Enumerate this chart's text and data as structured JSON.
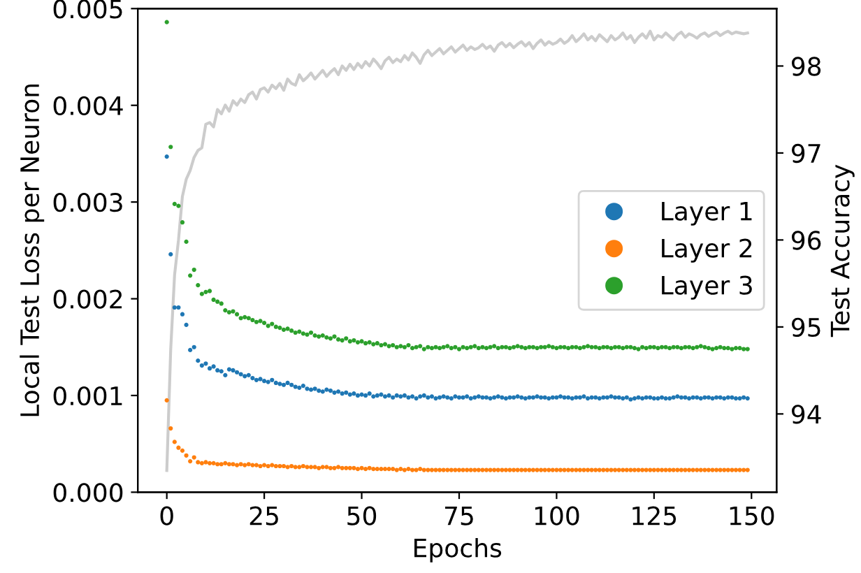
{
  "chart_data": {
    "type": "scatter",
    "xlabel": "Epochs",
    "ylabel": "Local Test Loss per Neuron",
    "y2label": "Test Accuracy",
    "xlim": [
      -7.45,
      156.45
    ],
    "xticks": [
      0,
      25,
      50,
      75,
      100,
      125,
      150
    ],
    "ylim": [
      0,
      0.005
    ],
    "yticks": [
      {
        "value": 0,
        "label": "0.000"
      },
      {
        "value": 0.001,
        "label": "0.001"
      },
      {
        "value": 0.002,
        "label": "0.002"
      },
      {
        "value": 0.003,
        "label": "0.003"
      },
      {
        "value": 0.004,
        "label": "0.004"
      },
      {
        "value": 0.005,
        "label": "0.005"
      }
    ],
    "y2lim": [
      93.1,
      98.66
    ],
    "y2ticks": [
      94,
      95,
      96,
      97,
      98
    ],
    "legend": "right",
    "grid": false,
    "marker": "circle",
    "x": [
      0,
      1,
      2,
      3,
      4,
      5,
      6,
      7,
      8,
      9,
      10,
      11,
      12,
      13,
      14,
      15,
      16,
      17,
      18,
      19,
      20,
      21,
      22,
      23,
      24,
      25,
      26,
      27,
      28,
      29,
      30,
      31,
      32,
      33,
      34,
      35,
      36,
      37,
      38,
      39,
      40,
      41,
      42,
      43,
      44,
      45,
      46,
      47,
      48,
      49,
      50,
      51,
      52,
      53,
      54,
      55,
      56,
      57,
      58,
      59,
      60,
      61,
      62,
      63,
      64,
      65,
      66,
      67,
      68,
      69,
      70,
      71,
      72,
      73,
      74,
      75,
      76,
      77,
      78,
      79,
      80,
      81,
      82,
      83,
      84,
      85,
      86,
      87,
      88,
      89,
      90,
      91,
      92,
      93,
      94,
      95,
      96,
      97,
      98,
      99,
      100,
      101,
      102,
      103,
      104,
      105,
      106,
      107,
      108,
      109,
      110,
      111,
      112,
      113,
      114,
      115,
      116,
      117,
      118,
      119,
      120,
      121,
      122,
      123,
      124,
      125,
      126,
      127,
      128,
      129,
      130,
      131,
      132,
      133,
      134,
      135,
      136,
      137,
      138,
      139,
      140,
      141,
      142,
      143,
      144,
      145,
      146,
      147,
      148,
      149
    ],
    "series": [
      {
        "type": "line",
        "axis": "y2",
        "marker": "none",
        "color": "#cccccc",
        "values": [
          93.35,
          94.74,
          95.6,
          96.0,
          96.5,
          96.7,
          96.8,
          96.95,
          97.03,
          97.06,
          97.33,
          97.35,
          97.3,
          97.5,
          97.45,
          97.55,
          97.48,
          97.6,
          97.55,
          97.62,
          97.58,
          97.67,
          97.7,
          97.62,
          97.73,
          97.75,
          97.7,
          97.78,
          97.74,
          97.8,
          97.72,
          97.85,
          97.8,
          97.78,
          97.9,
          97.83,
          97.87,
          97.92,
          97.85,
          97.9,
          97.95,
          97.88,
          97.93,
          97.97,
          97.9,
          98.0,
          97.95,
          98.02,
          97.96,
          98.03,
          97.98,
          98.05,
          98.0,
          98.08,
          98.03,
          97.97,
          98.06,
          98.1,
          98.04,
          98.08,
          98.05,
          98.12,
          98.07,
          98.15,
          98.1,
          98.03,
          98.13,
          98.18,
          98.12,
          98.16,
          98.2,
          98.14,
          98.18,
          98.22,
          98.16,
          98.2,
          98.24,
          98.18,
          98.22,
          98.19,
          98.21,
          98.25,
          98.2,
          98.23,
          98.17,
          98.24,
          98.27,
          98.22,
          98.26,
          98.21,
          98.25,
          98.28,
          98.23,
          98.27,
          98.2,
          98.26,
          98.3,
          98.24,
          98.28,
          98.25,
          98.27,
          98.31,
          98.26,
          98.29,
          98.35,
          98.28,
          98.32,
          98.37,
          98.3,
          98.34,
          98.29,
          98.36,
          98.32,
          98.28,
          98.35,
          98.3,
          98.33,
          98.38,
          98.31,
          98.35,
          98.27,
          98.33,
          98.37,
          98.32,
          98.4,
          98.3,
          98.35,
          98.33,
          98.38,
          98.34,
          98.3,
          98.36,
          98.39,
          98.33,
          98.37,
          98.35,
          98.32,
          98.36,
          98.38,
          98.34,
          98.37,
          98.39,
          98.35,
          98.38,
          98.4,
          98.37,
          98.39,
          98.38,
          98.37,
          98.38
        ]
      },
      {
        "name": "Layer 1",
        "color": "#1f77b4",
        "values": [
          0.00347,
          0.00246,
          0.00191,
          0.00191,
          0.00184,
          0.00173,
          0.00147,
          0.0015,
          0.00136,
          0.00131,
          0.00133,
          0.00128,
          0.0013,
          0.00126,
          0.00125,
          0.00121,
          0.00127,
          0.00126,
          0.00124,
          0.00122,
          0.0012,
          0.00121,
          0.00118,
          0.00116,
          0.00117,
          0.00115,
          0.00114,
          0.00116,
          0.00113,
          0.00112,
          0.00111,
          0.00113,
          0.00111,
          0.00109,
          0.00108,
          0.0011,
          0.00107,
          0.00106,
          0.00107,
          0.00105,
          0.00104,
          0.00106,
          0.00105,
          0.00103,
          0.00104,
          0.00102,
          0.00103,
          0.00101,
          0.00102,
          0.001,
          0.00101,
          0.001,
          0.00102,
          0.00099,
          0.001,
          0.00101,
          0.00099,
          0.001,
          0.00098,
          0.001,
          0.00099,
          0.001,
          0.00098,
          0.00099,
          0.00097,
          0.00099,
          0.001,
          0.00098,
          0.00099,
          0.00097,
          0.00098,
          0.00099,
          0.00098,
          0.00097,
          0.00099,
          0.00098,
          0.00098,
          0.00099,
          0.00097,
          0.00098,
          0.00099,
          0.00098,
          0.00098,
          0.00097,
          0.00098,
          0.00099,
          0.00098,
          0.00097,
          0.00098,
          0.00098,
          0.00099,
          0.00098,
          0.00097,
          0.00098,
          0.00098,
          0.00099,
          0.00098,
          0.00098,
          0.00097,
          0.00098,
          0.00098,
          0.00099,
          0.00098,
          0.00098,
          0.00097,
          0.00098,
          0.00098,
          0.00099,
          0.00097,
          0.00098,
          0.00098,
          0.00097,
          0.00098,
          0.00098,
          0.00099,
          0.00098,
          0.00098,
          0.00097,
          0.00098,
          0.00096,
          0.00097,
          0.00098,
          0.00097,
          0.00098,
          0.00098,
          0.00097,
          0.00097,
          0.00098,
          0.00097,
          0.00097,
          0.00098,
          0.00099,
          0.00098,
          0.00098,
          0.00097,
          0.00098,
          0.00098,
          0.00097,
          0.00098,
          0.00098,
          0.00097,
          0.00098,
          0.00098,
          0.00097,
          0.00098,
          0.00098,
          0.00097,
          0.00097,
          0.00098,
          0.00097
        ]
      },
      {
        "name": "Layer 2",
        "color": "#ff7f0e",
        "values": [
          0.00095,
          0.00066,
          0.00052,
          0.00046,
          0.00043,
          0.00038,
          0.00032,
          0.00036,
          0.00031,
          0.0003,
          0.00031,
          0.0003,
          0.0003,
          0.00029,
          0.00029,
          0.0003,
          0.00029,
          0.00029,
          0.00028,
          0.00029,
          0.00028,
          0.00029,
          0.00028,
          0.00028,
          0.00027,
          0.00028,
          0.00027,
          0.00028,
          0.00027,
          0.00027,
          0.00027,
          0.00026,
          0.00027,
          0.00026,
          0.00026,
          0.00027,
          0.00026,
          0.00026,
          0.00026,
          0.00025,
          0.00026,
          0.00026,
          0.00025,
          0.00025,
          0.00026,
          0.00025,
          0.00025,
          0.00025,
          0.00025,
          0.00024,
          0.00025,
          0.00024,
          0.00025,
          0.00024,
          0.00024,
          0.00024,
          0.00024,
          0.00024,
          0.00024,
          0.00023,
          0.00024,
          0.00023,
          0.00024,
          0.00023,
          0.00023,
          0.00024,
          0.00023,
          0.00023,
          0.00023,
          0.00023,
          0.00023,
          0.00023,
          0.00023,
          0.00023,
          0.00023,
          0.00023,
          0.00023,
          0.00023,
          0.00023,
          0.00023,
          0.00023,
          0.00023,
          0.00023,
          0.00023,
          0.00023,
          0.00023,
          0.00023,
          0.00023,
          0.00023,
          0.00023,
          0.00023,
          0.00023,
          0.00023,
          0.00023,
          0.00023,
          0.00023,
          0.00023,
          0.00023,
          0.00023,
          0.00023,
          0.00023,
          0.00023,
          0.00023,
          0.00023,
          0.00023,
          0.00023,
          0.00023,
          0.00023,
          0.00023,
          0.00023,
          0.00023,
          0.00023,
          0.00023,
          0.00023,
          0.00023,
          0.00023,
          0.00023,
          0.00023,
          0.00023,
          0.00023,
          0.00023,
          0.00023,
          0.00023,
          0.00023,
          0.00023,
          0.00023,
          0.00023,
          0.00023,
          0.00023,
          0.00023,
          0.00023,
          0.00023,
          0.00023,
          0.00023,
          0.00023,
          0.00023,
          0.00023,
          0.00023,
          0.00023,
          0.00023,
          0.00023,
          0.00023,
          0.00023,
          0.00023,
          0.00023,
          0.00023,
          0.00023,
          0.00023,
          0.00023,
          0.00023
        ]
      },
      {
        "name": "Layer 3",
        "color": "#2ca02c",
        "values": [
          0.00486,
          0.00357,
          0.00298,
          0.00296,
          0.00279,
          0.00259,
          0.00224,
          0.0023,
          0.00214,
          0.00205,
          0.00207,
          0.00208,
          0.00199,
          0.00197,
          0.00195,
          0.00188,
          0.00186,
          0.00187,
          0.00184,
          0.0018,
          0.00181,
          0.0018,
          0.00178,
          0.00176,
          0.00177,
          0.00175,
          0.00172,
          0.00174,
          0.00171,
          0.0017,
          0.00168,
          0.00169,
          0.00167,
          0.00165,
          0.00166,
          0.00164,
          0.00163,
          0.00165,
          0.00162,
          0.00161,
          0.00162,
          0.0016,
          0.00159,
          0.00161,
          0.00158,
          0.00157,
          0.00159,
          0.00156,
          0.00157,
          0.00155,
          0.00156,
          0.00154,
          0.00155,
          0.00153,
          0.00154,
          0.00152,
          0.00153,
          0.00151,
          0.00152,
          0.0015,
          0.00151,
          0.0015,
          0.00152,
          0.00149,
          0.0015,
          0.00151,
          0.00148,
          0.0015,
          0.00149,
          0.0015,
          0.00149,
          0.0015,
          0.00151,
          0.00149,
          0.0015,
          0.00148,
          0.0015,
          0.00149,
          0.0015,
          0.00151,
          0.00149,
          0.0015,
          0.00149,
          0.0015,
          0.00151,
          0.00149,
          0.0015,
          0.0015,
          0.00149,
          0.0015,
          0.00151,
          0.0015,
          0.00149,
          0.0015,
          0.0015,
          0.00149,
          0.0015,
          0.0015,
          0.00151,
          0.0015,
          0.00149,
          0.0015,
          0.0015,
          0.00149,
          0.0015,
          0.0015,
          0.00149,
          0.0015,
          0.00151,
          0.0015,
          0.0015,
          0.00149,
          0.0015,
          0.0015,
          0.00149,
          0.0015,
          0.0015,
          0.00149,
          0.0015,
          0.0015,
          0.00149,
          0.00148,
          0.0015,
          0.00149,
          0.0015,
          0.0015,
          0.00149,
          0.0015,
          0.0015,
          0.00149,
          0.0015,
          0.0015,
          0.00149,
          0.0015,
          0.0015,
          0.00149,
          0.0015,
          0.00151,
          0.0015,
          0.00149,
          0.00148,
          0.00149,
          0.0015,
          0.00149,
          0.00149,
          0.00148,
          0.00149,
          0.00149,
          0.00148,
          0.00148
        ]
      }
    ]
  }
}
